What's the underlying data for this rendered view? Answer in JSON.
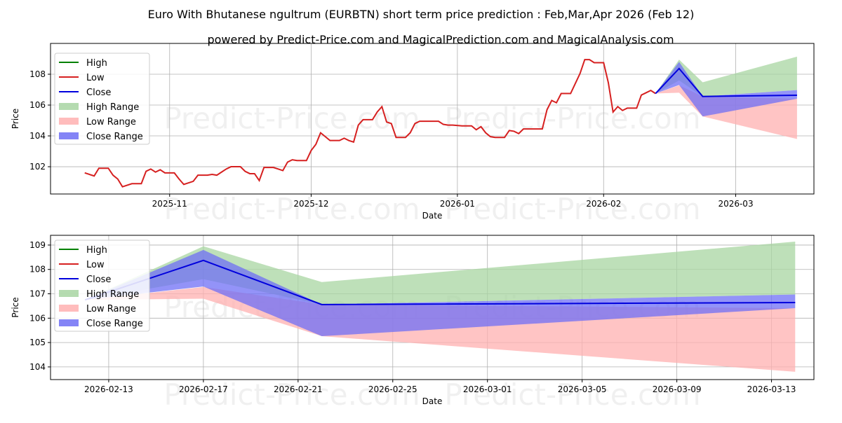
{
  "title": "Euro With Bhutanese ngultrum (EURBTN) short term price prediction : Feb,Mar,Apr 2026 (Feb 12)",
  "subtitle": "powered by Predict-Price.com and MagicalPrediction.com and MagicalAnalysis.com",
  "watermark": "Predict-Price.com",
  "colors": {
    "high": "#008000",
    "low": "#d62020",
    "close": "#0000dd",
    "high_range": "#a8d5a2",
    "low_range": "#ffb0b0",
    "close_range": "#6f6ff5"
  },
  "chart_data": [
    {
      "type": "line",
      "xlabel": "Date",
      "ylabel": "Price",
      "xlim": [
        "2025-10-06T18:00:00Z",
        "2026-03-17T14:00:00Z"
      ],
      "ylim": [
        100.23,
        110.0
      ],
      "xticks": [
        {
          "date": "2025-11-01",
          "label": "2025-11"
        },
        {
          "date": "2025-12-01",
          "label": "2025-12"
        },
        {
          "date": "2026-01-01",
          "label": "2026-01"
        },
        {
          "date": "2026-02-01",
          "label": "2026-02"
        },
        {
          "date": "2026-03-01",
          "label": "2026-03"
        }
      ],
      "yticks": [
        102,
        104,
        106,
        108
      ],
      "grid": true,
      "legend_position": "top-left",
      "legend": [
        "High",
        "Low",
        "Close",
        "High Range",
        "Low Range",
        "Close Range"
      ],
      "show_history": true
    },
    {
      "type": "line",
      "xlabel": "Date",
      "ylabel": "Price",
      "xlim": [
        "2026-02-10T13:00:00Z",
        "2026-03-14T19:00:00Z"
      ],
      "ylim": [
        103.48,
        109.4
      ],
      "xticks": [
        {
          "date": "2026-02-13",
          "label": "2026-02-13"
        },
        {
          "date": "2026-02-17",
          "label": "2026-02-17"
        },
        {
          "date": "2026-02-21",
          "label": "2026-02-21"
        },
        {
          "date": "2026-02-25",
          "label": "2026-02-25"
        },
        {
          "date": "2026-03-01",
          "label": "2026-03-01"
        },
        {
          "date": "2026-03-05",
          "label": "2026-03-05"
        },
        {
          "date": "2026-03-09",
          "label": "2026-03-09"
        },
        {
          "date": "2026-03-13",
          "label": "2026-03-13"
        }
      ],
      "yticks": [
        104,
        105,
        106,
        107,
        108,
        109
      ],
      "grid": true,
      "legend_position": "top-left",
      "legend": [
        "High",
        "Low",
        "Close",
        "High Range",
        "Low Range",
        "Close Range"
      ],
      "show_history": false
    }
  ],
  "history": {
    "dates": [
      "2025-10-14",
      "2025-10-16",
      "2025-10-17",
      "2025-10-19",
      "2025-10-20",
      "2025-10-21",
      "2025-10-22",
      "2025-10-24",
      "2025-10-26",
      "2025-10-27",
      "2025-10-28",
      "2025-10-29",
      "2025-10-30",
      "2025-10-31",
      "2025-11-02",
      "2025-11-03",
      "2025-11-04",
      "2025-11-06",
      "2025-11-07",
      "2025-11-09",
      "2025-11-10",
      "2025-11-11",
      "2025-11-12",
      "2025-11-13",
      "2025-11-14",
      "2025-11-16",
      "2025-11-17",
      "2025-11-18",
      "2025-11-19",
      "2025-11-20",
      "2025-11-21",
      "2025-11-23",
      "2025-11-24",
      "2025-11-25",
      "2025-11-26",
      "2025-11-27",
      "2025-11-28",
      "2025-11-30",
      "2025-12-01",
      "2025-12-02",
      "2025-12-03",
      "2025-12-04",
      "2025-12-05",
      "2025-12-07",
      "2025-12-08",
      "2025-12-09",
      "2025-12-10",
      "2025-12-11",
      "2025-12-12",
      "2025-12-14",
      "2025-12-15",
      "2025-12-16",
      "2025-12-17",
      "2025-12-18",
      "2025-12-19",
      "2025-12-21",
      "2025-12-22",
      "2025-12-23",
      "2025-12-24",
      "2025-12-28",
      "2025-12-29",
      "2025-12-30",
      "2025-12-31",
      "2026-01-02",
      "2026-01-04",
      "2026-01-05",
      "2026-01-06",
      "2026-01-07",
      "2026-01-08",
      "2026-01-09",
      "2026-01-11",
      "2026-01-12",
      "2026-01-13",
      "2026-01-14",
      "2026-01-15",
      "2026-01-18",
      "2026-01-19",
      "2026-01-20",
      "2026-01-21",
      "2026-01-22",
      "2026-01-23",
      "2026-01-25",
      "2026-01-27",
      "2026-01-28",
      "2026-01-29",
      "2026-01-30",
      "2026-02-01",
      "2026-02-02",
      "2026-02-03",
      "2026-02-04",
      "2026-02-05",
      "2026-02-06",
      "2026-02-08",
      "2026-02-09",
      "2026-02-10",
      "2026-02-11",
      "2026-02-12"
    ],
    "low": [
      101.6,
      101.4,
      101.9,
      101.9,
      101.45,
      101.2,
      100.7,
      100.9,
      100.9,
      101.7,
      101.85,
      101.65,
      101.8,
      101.6,
      101.6,
      101.2,
      100.85,
      101.05,
      101.45,
      101.45,
      101.5,
      101.45,
      101.65,
      101.85,
      102.0,
      102.0,
      101.7,
      101.55,
      101.55,
      101.1,
      101.95,
      101.95,
      101.85,
      101.75,
      102.3,
      102.45,
      102.4,
      102.4,
      103.05,
      103.45,
      104.2,
      103.95,
      103.7,
      103.7,
      103.85,
      103.7,
      103.6,
      104.7,
      105.05,
      105.05,
      105.55,
      105.9,
      104.9,
      104.8,
      103.9,
      103.9,
      104.2,
      104.8,
      104.95,
      104.95,
      104.75,
      104.7,
      104.7,
      104.65,
      104.65,
      104.4,
      104.6,
      104.2,
      103.95,
      103.9,
      103.9,
      104.35,
      104.3,
      104.15,
      104.45,
      104.45,
      104.45,
      105.7,
      106.3,
      106.15,
      106.75,
      106.75,
      108.05,
      108.95,
      108.95,
      108.75,
      108.75,
      107.45,
      105.55,
      105.9,
      105.65,
      105.8,
      105.8,
      106.65,
      106.8,
      106.95,
      106.75
    ]
  },
  "forecast": {
    "dates": [
      "2026-02-12",
      "2026-02-17",
      "2026-02-22",
      "2026-03-14"
    ],
    "close": [
      106.75,
      108.37,
      106.56,
      106.64
    ],
    "high_range": {
      "lower": [
        106.75,
        107.6,
        106.56,
        106.97
      ],
      "upper": [
        106.75,
        108.95,
        107.48,
        109.14
      ]
    },
    "low_range": {
      "lower": [
        106.75,
        106.8,
        105.26,
        103.8
      ],
      "upper": [
        106.75,
        107.28,
        106.56,
        106.41
      ]
    },
    "close_range": {
      "lower": [
        106.75,
        107.3,
        105.26,
        106.41
      ],
      "upper": [
        106.75,
        108.8,
        106.56,
        106.97
      ]
    }
  }
}
